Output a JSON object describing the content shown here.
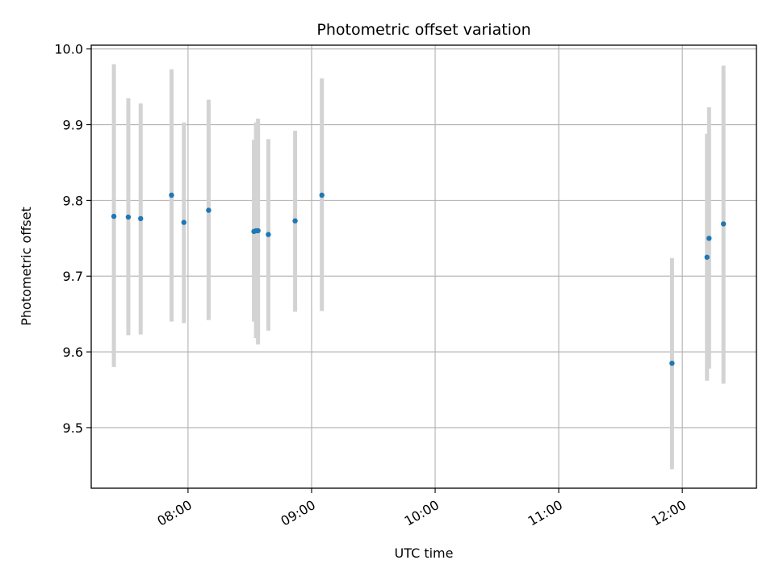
{
  "chart_data": {
    "type": "scatter",
    "title": "Photometric offset variation",
    "xlabel": "UTC time",
    "ylabel": "Photometric offset",
    "xlim": [
      "07:13",
      "12:36"
    ],
    "ylim": [
      9.42,
      10.005
    ],
    "x_ticks": [
      "08:00",
      "09:00",
      "10:00",
      "11:00",
      "12:00"
    ],
    "y_ticks": [
      9.5,
      9.6,
      9.7,
      9.8,
      9.9,
      10.0
    ],
    "grid": true,
    "marker_color": "#1f77b4",
    "errorbar_color": "#d3d3d3",
    "points": [
      {
        "t": "07:24",
        "y": 9.779,
        "lo": 9.58,
        "hi": 9.98
      },
      {
        "t": "07:31",
        "y": 9.778,
        "lo": 9.622,
        "hi": 9.935
      },
      {
        "t": "07:37",
        "y": 9.776,
        "lo": 9.623,
        "hi": 9.928
      },
      {
        "t": "07:52",
        "y": 9.807,
        "lo": 9.64,
        "hi": 9.973
      },
      {
        "t": "07:58",
        "y": 9.771,
        "lo": 9.638,
        "hi": 9.903
      },
      {
        "t": "08:10",
        "y": 9.787,
        "lo": 9.642,
        "hi": 9.933
      },
      {
        "t": "08:32",
        "y": 9.759,
        "lo": 9.64,
        "hi": 9.88
      },
      {
        "t": "08:33",
        "y": 9.76,
        "lo": 9.618,
        "hi": 9.903
      },
      {
        "t": "08:34",
        "y": 9.76,
        "lo": 9.61,
        "hi": 9.908
      },
      {
        "t": "08:39",
        "y": 9.755,
        "lo": 9.628,
        "hi": 9.881
      },
      {
        "t": "08:52",
        "y": 9.773,
        "lo": 9.653,
        "hi": 9.892
      },
      {
        "t": "09:05",
        "y": 9.807,
        "lo": 9.654,
        "hi": 9.961
      },
      {
        "t": "11:55",
        "y": 9.585,
        "lo": 9.445,
        "hi": 9.724
      },
      {
        "t": "12:12",
        "y": 9.725,
        "lo": 9.562,
        "hi": 9.888
      },
      {
        "t": "12:13",
        "y": 9.75,
        "lo": 9.578,
        "hi": 9.923
      },
      {
        "t": "12:20",
        "y": 9.769,
        "lo": 9.558,
        "hi": 9.978
      }
    ]
  }
}
